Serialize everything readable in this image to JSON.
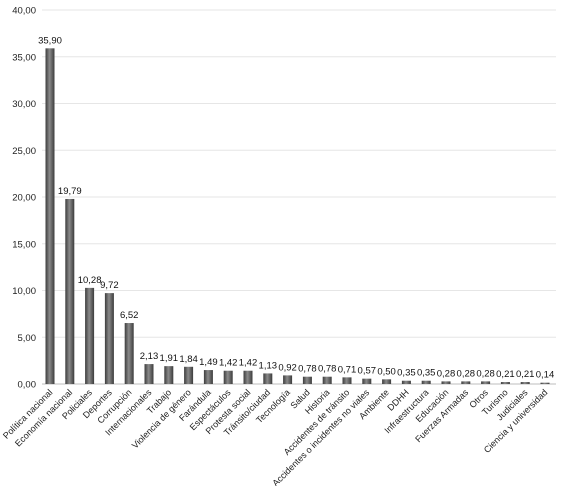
{
  "chart_data": {
    "type": "bar",
    "title": "",
    "xlabel": "",
    "ylabel": "",
    "ylim": [
      0,
      40
    ],
    "y_ticks": [
      "0,00",
      "5,00",
      "10,00",
      "15,00",
      "20,00",
      "25,00",
      "30,00",
      "35,00",
      "40,00"
    ],
    "grid": true,
    "legend": "none",
    "bar_color": "#5a5a5a",
    "categories": [
      "Política nacional",
      "Economía nacional",
      "Policiales",
      "Deportes",
      "Corrupción",
      "Internacionales",
      "Trabajo",
      "Violencia de género",
      "Farándula",
      "Espectáculos",
      "Protesta social",
      "Tránsito/ciudad",
      "Tecnología",
      "Salud",
      "Historia",
      "Accidentes de tránsito",
      "Accidentes o incidentes no viales",
      "Ambiente",
      "DDHH",
      "Infraestructura",
      "Educación",
      "Fuerzas Armadas",
      "Otros",
      "Turismo",
      "Judiciales",
      "Ciencia y universidad"
    ],
    "values": [
      35.9,
      19.79,
      10.28,
      9.72,
      6.52,
      2.13,
      1.91,
      1.84,
      1.49,
      1.42,
      1.42,
      1.13,
      0.92,
      0.78,
      0.78,
      0.71,
      0.57,
      0.5,
      0.35,
      0.35,
      0.28,
      0.28,
      0.28,
      0.21,
      0.21,
      0.14
    ],
    "value_labels": [
      "35,90",
      "19,79",
      "10,28",
      "9,72",
      "6,52",
      "2,13",
      "1,91",
      "1,84",
      "1,49",
      "1,42",
      "1,42",
      "1,13",
      "0,92",
      "0,78",
      "0,78",
      "0,71",
      "0,57",
      "0,50",
      "0,35",
      "0,35",
      "0,28",
      "0,28",
      "0,28",
      "0,21",
      "0,21",
      "0,14"
    ]
  }
}
